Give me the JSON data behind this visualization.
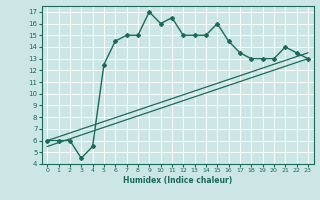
{
  "xlabel": "Humidex (Indice chaleur)",
  "ylabel": "",
  "background_color": "#cce5e5",
  "grid_color": "#ffffff",
  "line_color": "#1a6b5a",
  "xlim": [
    -0.5,
    23.5
  ],
  "ylim": [
    4,
    17.5
  ],
  "yticks": [
    4,
    5,
    6,
    7,
    8,
    9,
    10,
    11,
    12,
    13,
    14,
    15,
    16,
    17
  ],
  "xticks": [
    0,
    1,
    2,
    3,
    4,
    5,
    6,
    7,
    8,
    9,
    10,
    11,
    12,
    13,
    14,
    15,
    16,
    17,
    18,
    19,
    20,
    21,
    22,
    23
  ],
  "curve1_x": [
    0,
    1,
    2,
    3,
    4,
    5,
    6,
    7,
    8,
    9,
    10,
    11,
    12,
    13,
    14,
    15,
    16,
    17,
    18,
    19,
    20,
    21,
    22,
    23
  ],
  "curve1_y": [
    6,
    6,
    6,
    4.5,
    5.5,
    12.5,
    14.5,
    15,
    15,
    17,
    16,
    16.5,
    15,
    15,
    15,
    16,
    14.5,
    13.5,
    13,
    13,
    13,
    14,
    13.5,
    13
  ],
  "curve2_x": [
    0,
    23
  ],
  "curve2_y": [
    5.5,
    13
  ],
  "curve3_x": [
    0,
    23
  ],
  "curve3_y": [
    6.0,
    13.5
  ]
}
